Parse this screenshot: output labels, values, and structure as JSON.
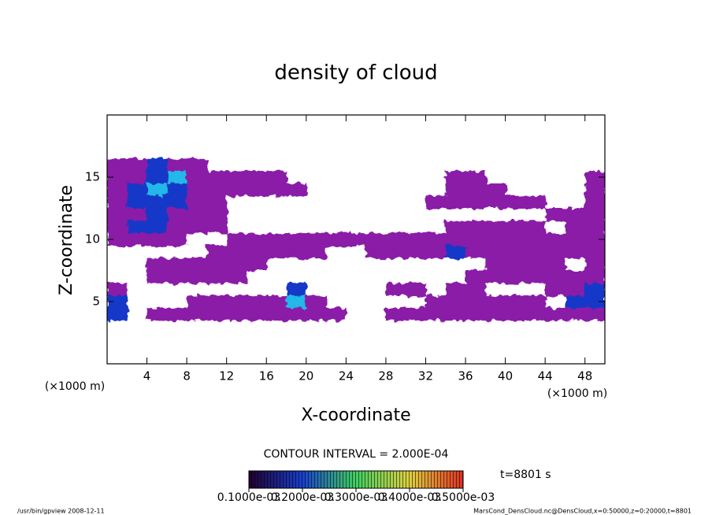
{
  "chart_data": {
    "type": "contour",
    "title": "density of cloud",
    "xlabel": "X-coordinate",
    "ylabel": "Z-coordinate",
    "x_unit": "(×1000 m)",
    "y_unit": "(×1000 m)",
    "contour_interval": "CONTOUR INTERVAL = 2.000E-04",
    "time_label": "t=8801 s",
    "footer_left": "/usr/bin/gpview   2008-12-11",
    "footer_right": "MarsCond_DensCloud.nc@DensCloud,x=0:50000,z=0:20000,t=8801",
    "x": [
      1,
      3,
      5,
      7,
      9,
      11,
      13,
      15,
      17,
      19,
      21,
      23,
      25,
      27,
      29,
      31,
      33,
      35,
      37,
      39,
      41,
      43,
      45,
      47,
      49
    ],
    "z": [
      16,
      15,
      14,
      13,
      12,
      11,
      10,
      9,
      8,
      7,
      6,
      5,
      4
    ],
    "values": [
      [
        5e-05,
        5e-05,
        0.00015,
        5e-05,
        5e-05,
        0,
        0,
        0,
        0,
        0,
        0,
        0,
        0,
        0,
        0,
        0,
        0,
        0,
        0,
        0,
        0,
        0,
        0,
        0,
        0
      ],
      [
        5e-05,
        5e-05,
        0.00015,
        0.00025,
        5e-05,
        5e-05,
        5e-05,
        5e-05,
        5e-05,
        0,
        0,
        0,
        0,
        0,
        0,
        0,
        0,
        5e-05,
        5e-05,
        0,
        0,
        0,
        0,
        0,
        5e-05
      ],
      [
        5e-05,
        0.00015,
        0.00025,
        0.00015,
        5e-05,
        5e-05,
        5e-05,
        5e-05,
        5e-05,
        5e-05,
        0,
        0,
        0,
        0,
        0,
        0,
        0,
        5e-05,
        5e-05,
        5e-05,
        0,
        0,
        0,
        0,
        5e-05
      ],
      [
        5e-05,
        0.00015,
        0.00015,
        0.00015,
        5e-05,
        5e-05,
        0,
        0,
        0,
        0,
        0,
        0,
        0,
        0,
        0,
        0,
        5e-05,
        5e-05,
        5e-05,
        5e-05,
        5e-05,
        5e-05,
        0,
        0,
        5e-05
      ],
      [
        5e-05,
        5e-05,
        0.00015,
        5e-05,
        5e-05,
        5e-05,
        0,
        0,
        0,
        0,
        0,
        0,
        0,
        0,
        0,
        0,
        0,
        0,
        0,
        0,
        0,
        0,
        5e-05,
        5e-05,
        5e-05
      ],
      [
        5e-05,
        0.00015,
        0.00015,
        5e-05,
        5e-05,
        5e-05,
        0,
        0,
        0,
        0,
        0,
        0,
        0,
        0,
        0,
        0,
        0,
        5e-05,
        5e-05,
        5e-05,
        5e-05,
        5e-05,
        0,
        5e-05,
        5e-05
      ],
      [
        5e-05,
        5e-05,
        5e-05,
        5e-05,
        0,
        0,
        5e-05,
        5e-05,
        5e-05,
        5e-05,
        5e-05,
        5e-05,
        5e-05,
        5e-05,
        5e-05,
        5e-05,
        5e-05,
        5e-05,
        5e-05,
        5e-05,
        5e-05,
        5e-05,
        5e-05,
        5e-05,
        5e-05
      ],
      [
        0,
        0,
        0,
        0,
        0,
        5e-05,
        5e-05,
        5e-05,
        5e-05,
        5e-05,
        5e-05,
        0,
        0,
        5e-05,
        5e-05,
        5e-05,
        5e-05,
        0.00015,
        5e-05,
        5e-05,
        5e-05,
        5e-05,
        5e-05,
        5e-05,
        5e-05
      ],
      [
        0,
        0,
        5e-05,
        5e-05,
        5e-05,
        5e-05,
        5e-05,
        5e-05,
        0,
        0,
        0,
        0,
        0,
        0,
        0,
        0,
        0,
        0,
        0,
        5e-05,
        5e-05,
        5e-05,
        5e-05,
        0,
        5e-05
      ],
      [
        0,
        0,
        5e-05,
        5e-05,
        5e-05,
        5e-05,
        5e-05,
        0,
        0,
        0,
        0,
        0,
        0,
        0,
        0,
        0,
        0,
        0,
        5e-05,
        5e-05,
        5e-05,
        5e-05,
        5e-05,
        5e-05,
        5e-05
      ],
      [
        5e-05,
        0,
        0,
        0,
        0,
        0,
        0,
        0,
        0,
        0.00015,
        0,
        0,
        0,
        0,
        5e-05,
        5e-05,
        0,
        5e-05,
        5e-05,
        0,
        0,
        0,
        5e-05,
        5e-05,
        0.00015
      ],
      [
        0.00015,
        0,
        0,
        0,
        5e-05,
        5e-05,
        5e-05,
        5e-05,
        5e-05,
        0.00025,
        5e-05,
        0,
        0,
        0,
        0,
        0,
        5e-05,
        5e-05,
        5e-05,
        5e-05,
        5e-05,
        5e-05,
        0,
        0.00015,
        0.00015
      ],
      [
        0.00015,
        0,
        5e-05,
        5e-05,
        5e-05,
        5e-05,
        5e-05,
        5e-05,
        5e-05,
        5e-05,
        5e-05,
        5e-05,
        0,
        0,
        5e-05,
        5e-05,
        5e-05,
        5e-05,
        5e-05,
        5e-05,
        5e-05,
        5e-05,
        5e-05,
        5e-05,
        5e-05
      ]
    ],
    "cell_width": 2,
    "cell_height": 1,
    "colors": [
      "#8a1ea8",
      "#1438c8",
      "#22b8e8",
      "#40d040",
      "#e0d020",
      "#e04020"
    ],
    "xlim": [
      0,
      50
    ],
    "ylim": [
      0,
      20
    ],
    "xticks": [
      4,
      8,
      12,
      16,
      20,
      24,
      28,
      32,
      36,
      40,
      44,
      48
    ],
    "yticks": [
      5,
      10,
      15
    ],
    "clim": [
      0.0001,
      0.0005
    ],
    "cticks": [
      {
        "value": 0.0001,
        "label": "0.1000e-03"
      },
      {
        "value": 0.0002,
        "label": "0.2000e-03"
      },
      {
        "value": 0.0003,
        "label": "0.3000e-03"
      },
      {
        "value": 0.0004,
        "label": "0.4000e-03"
      },
      {
        "value": 0.0005,
        "label": "0.5000e-03"
      }
    ]
  }
}
